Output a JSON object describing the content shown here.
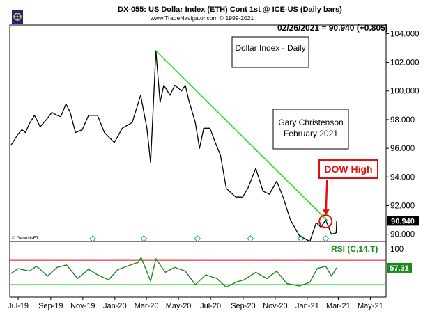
{
  "header": {
    "title": "DX-055:  US Dollar Index (ETH) Cont 1st @ ICE-US  (Daily bars)",
    "subtitle": "www.TradeNavigator.com © 1999-2021",
    "last_price": "02/26/2021 = 90.940 (+0.805)"
  },
  "annotations": {
    "box1": "Dollar Index - Daily",
    "box2_line1": "Gary Christenson",
    "box2_line2": "February 2021",
    "dow": "DOW High",
    "rsi": "RSI (C,14,T)",
    "vendor": "© GenesisFT"
  },
  "colors": {
    "price": "#000000",
    "trendline": "#22dd22",
    "rsi": "#1a8a1a",
    "rsi_upper": "#e01010",
    "rsi_lower": "#22dd22",
    "dow": "#e01010",
    "marker": "#22a0a0"
  },
  "chart_data": [
    {
      "type": "line",
      "x_ticks": [
        "Jul-19",
        "Sep-19",
        "Nov-19",
        "Jan-20",
        "Mar-20",
        "May-20",
        "Jul-20",
        "Sep-20",
        "Nov-20",
        "Jan-21",
        "Mar-21",
        "May-21"
      ],
      "y_ticks": [
        90.0,
        92.0,
        94.0,
        96.0,
        98.0,
        100.0,
        102.0,
        104.0
      ],
      "ylim": [
        89.5,
        104.6
      ],
      "xlim": [
        "2019-06-15",
        "2021-05-31"
      ],
      "series": [
        {
          "x": [
            "2019-06-17",
            "2019-06-24",
            "2019-07-01",
            "2019-07-08",
            "2019-07-15",
            "2019-07-22",
            "2019-08-01",
            "2019-08-12",
            "2019-08-26",
            "2019-09-03",
            "2019-09-13",
            "2019-09-20",
            "2019-09-30",
            "2019-10-08",
            "2019-10-18",
            "2019-10-31",
            "2019-11-12",
            "2019-11-29",
            "2019-12-12",
            "2019-12-31",
            "2020-01-15",
            "2020-02-03",
            "2020-02-19",
            "2020-03-02",
            "2020-03-09",
            "2020-03-19",
            "2020-03-27",
            "2020-04-03",
            "2020-04-15",
            "2020-04-24",
            "2020-05-07",
            "2020-05-14",
            "2020-05-21",
            "2020-06-02",
            "2020-06-10",
            "2020-06-18",
            "2020-06-30",
            "2020-07-10",
            "2020-07-20",
            "2020-07-31",
            "2020-08-18",
            "2020-08-31",
            "2020-09-10",
            "2020-09-25",
            "2020-10-09",
            "2020-10-21",
            "2020-11-04",
            "2020-11-16",
            "2020-11-30",
            "2020-12-17",
            "2021-01-06",
            "2021-01-18",
            "2021-01-27",
            "2021-02-05",
            "2021-02-16",
            "2021-02-25",
            "2021-02-26"
          ],
          "values": [
            96.2,
            96.6,
            97.0,
            97.3,
            97.1,
            97.7,
            98.3,
            97.5,
            98.1,
            98.5,
            98.3,
            98.2,
            99.1,
            98.5,
            97.1,
            97.3,
            98.3,
            98.3,
            97.1,
            96.4,
            97.4,
            97.8,
            99.7,
            97.4,
            95.0,
            102.8,
            99.2,
            100.4,
            99.7,
            100.4,
            100.0,
            100.4,
            99.3,
            97.8,
            96.0,
            97.4,
            97.4,
            96.4,
            95.5,
            93.2,
            92.6,
            92.6,
            93.2,
            94.6,
            93.0,
            92.8,
            93.7,
            92.6,
            91.0,
            89.9,
            89.5,
            90.8,
            90.5,
            91.0,
            90.0,
            90.1,
            90.94
          ]
        }
      ],
      "trendline": {
        "x": [
          "2020-03-19",
          "2021-02-10"
        ],
        "values": [
          102.8,
          90.9
        ]
      },
      "last_value_label": "90.940",
      "dow_high": {
        "x": "2021-02-05",
        "value": 91.0
      }
    },
    {
      "type": "line",
      "title": "RSI (C,14,T)",
      "ylim": [
        10,
        100
      ],
      "y_ticks": [
        100
      ],
      "reference_lines": [
        70,
        30
      ],
      "series": [
        {
          "x": [
            "2019-06-17",
            "2019-07-01",
            "2019-07-22",
            "2019-08-05",
            "2019-08-26",
            "2019-09-13",
            "2019-10-01",
            "2019-10-22",
            "2019-11-12",
            "2019-11-29",
            "2019-12-20",
            "2020-01-06",
            "2020-01-24",
            "2020-02-14",
            "2020-02-20",
            "2020-03-09",
            "2020-03-19",
            "2020-04-06",
            "2020-04-24",
            "2020-05-14",
            "2020-06-02",
            "2020-06-22",
            "2020-07-13",
            "2020-07-31",
            "2020-08-18",
            "2020-09-03",
            "2020-09-25",
            "2020-10-16",
            "2020-11-04",
            "2020-11-23",
            "2020-12-17",
            "2021-01-06",
            "2021-01-20",
            "2021-02-05",
            "2021-02-16",
            "2021-02-26"
          ],
          "values": [
            48,
            56,
            52,
            60,
            44,
            58,
            62,
            40,
            55,
            46,
            38,
            54,
            60,
            66,
            74,
            36,
            72,
            50,
            58,
            52,
            30,
            46,
            40,
            26,
            34,
            38,
            50,
            40,
            52,
            32,
            28,
            34,
            56,
            60,
            44,
            57.31
          ]
        }
      ],
      "last_value_label": "57.31"
    }
  ]
}
